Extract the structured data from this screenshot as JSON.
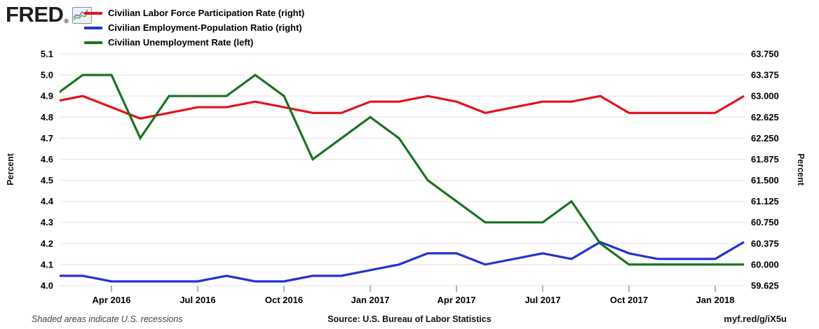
{
  "brand": {
    "name": "FRED",
    "registered_mark": "®",
    "logo_icon": "line-chart-icon"
  },
  "legend": {
    "position": "top-left",
    "items": [
      {
        "label": "Civilian Labor Force Participation Rate (right)",
        "color": "#e3131b"
      },
      {
        "label": "Civilian Employment-Population Ratio (right)",
        "color": "#2233d0"
      },
      {
        "label": "Civilian Unemployment Rate (left)",
        "color": "#1a7320"
      }
    ]
  },
  "chart_data": {
    "type": "line",
    "title": "",
    "grid": true,
    "legend_position": "top-left",
    "x_categories": [
      "Feb 2016",
      "Mar 2016",
      "Apr 2016",
      "May 2016",
      "Jun 2016",
      "Jul 2016",
      "Aug 2016",
      "Sep 2016",
      "Oct 2016",
      "Nov 2016",
      "Dec 2016",
      "Jan 2017",
      "Feb 2017",
      "Mar 2017",
      "Apr 2017",
      "May 2017",
      "Jun 2017",
      "Jul 2017",
      "Aug 2017",
      "Sep 2017",
      "Oct 2017",
      "Nov 2017",
      "Dec 2017",
      "Jan 2018",
      "Feb 2018"
    ],
    "series": [
      {
        "name": "Civilian Labor Force Participation Rate (right)",
        "axis": "right",
        "color": "#e3131b",
        "values": [
          62.9,
          63.0,
          62.8,
          62.6,
          62.7,
          62.8,
          62.8,
          62.9,
          62.8,
          62.7,
          62.7,
          62.9,
          62.9,
          63.0,
          62.9,
          62.7,
          62.8,
          62.9,
          62.9,
          63.0,
          62.7,
          62.7,
          62.7,
          62.7,
          63.0
        ]
      },
      {
        "name": "Civilian Employment-Population Ratio (right)",
        "axis": "right",
        "color": "#2233d0",
        "values": [
          59.8,
          59.8,
          59.7,
          59.7,
          59.7,
          59.7,
          59.8,
          59.7,
          59.7,
          59.8,
          59.8,
          59.9,
          60.0,
          60.2,
          60.2,
          60.0,
          60.1,
          60.2,
          60.1,
          60.4,
          60.2,
          60.1,
          60.1,
          60.1,
          60.4
        ]
      },
      {
        "name": "Civilian Unemployment Rate (left)",
        "axis": "left",
        "color": "#1a7320",
        "values": [
          4.9,
          5.0,
          5.0,
          4.7,
          4.9,
          4.9,
          4.9,
          5.0,
          4.9,
          4.6,
          4.7,
          4.8,
          4.7,
          4.5,
          4.4,
          4.3,
          4.3,
          4.3,
          4.4,
          4.2,
          4.1,
          4.1,
          4.1,
          4.1,
          4.1
        ]
      }
    ],
    "left_axis": {
      "label": "Percent",
      "range": [
        4.0,
        5.1
      ],
      "ticks": [
        "5.1",
        "5.0",
        "4.9",
        "4.8",
        "4.7",
        "4.6",
        "4.5",
        "4.4",
        "4.3",
        "4.2",
        "4.1",
        "4.0"
      ]
    },
    "right_axis": {
      "label": "Percent",
      "range": [
        59.625,
        63.75
      ],
      "ticks": [
        "63.750",
        "63.375",
        "63.000",
        "62.625",
        "62.250",
        "61.875",
        "61.500",
        "61.125",
        "60.750",
        "60.375",
        "60.000",
        "59.625"
      ]
    },
    "x_axis": {
      "tick_labels": [
        "Apr 2016",
        "Jul 2016",
        "Oct 2016",
        "Jan 2017",
        "Apr 2017",
        "Jul 2017",
        "Oct 2017",
        "Jan 2018"
      ],
      "tick_month_indices": [
        2,
        5,
        8,
        11,
        14,
        17,
        20,
        23
      ]
    }
  },
  "footer": {
    "recession_note": "Shaded areas indicate U.S. recessions",
    "source": "Source: U.S. Bureau of Labor Statistics",
    "permalink": "myf.red/g/iX5u"
  }
}
